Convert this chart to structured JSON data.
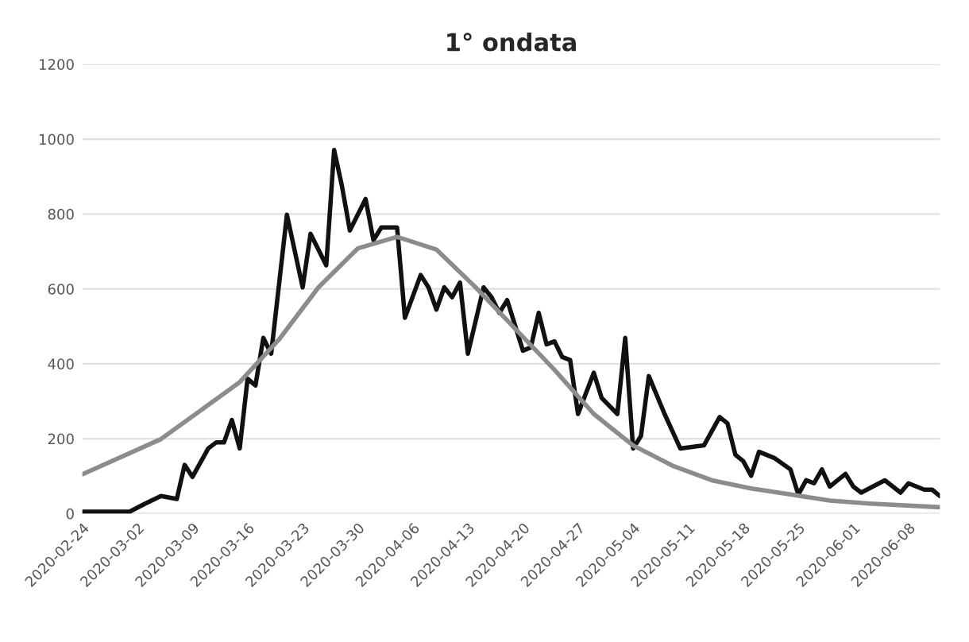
{
  "chart_data": {
    "type": "line",
    "title": "1° ondata",
    "series": [
      {
        "color": "#111111",
        "x": [
          "2020-02-24",
          "2020-03-01",
          "2020-03-03",
          "2020-03-05",
          "2020-03-07",
          "2020-03-08",
          "2020-03-09",
          "2020-03-11",
          "2020-03-12",
          "2020-03-13",
          "2020-03-14",
          "2020-03-15",
          "2020-03-16",
          "2020-03-17",
          "2020-03-18",
          "2020-03-19",
          "2020-03-21",
          "2020-03-23",
          "2020-03-24",
          "2020-03-26",
          "2020-03-27",
          "2020-03-28",
          "2020-03-29",
          "2020-03-31",
          "2020-04-01",
          "2020-04-02",
          "2020-04-04",
          "2020-04-05",
          "2020-04-07",
          "2020-04-08",
          "2020-04-09",
          "2020-04-10",
          "2020-04-11",
          "2020-04-12",
          "2020-04-13",
          "2020-04-15",
          "2020-04-16",
          "2020-04-17",
          "2020-04-18",
          "2020-04-20",
          "2020-04-21",
          "2020-04-22",
          "2020-04-23",
          "2020-04-24",
          "2020-04-25",
          "2020-04-26",
          "2020-04-27",
          "2020-04-29",
          "2020-04-30",
          "2020-05-02",
          "2020-05-03",
          "2020-05-04",
          "2020-05-05",
          "2020-05-06",
          "2020-05-08",
          "2020-05-10",
          "2020-05-13",
          "2020-05-15",
          "2020-05-16",
          "2020-05-17",
          "2020-05-18",
          "2020-05-19",
          "2020-05-20",
          "2020-05-22",
          "2020-05-24",
          "2020-05-25",
          "2020-05-26",
          "2020-05-27",
          "2020-05-28",
          "2020-05-29",
          "2020-05-31",
          "2020-06-01",
          "2020-06-02",
          "2020-06-03",
          "2020-06-05",
          "2020-06-07",
          "2020-06-08",
          "2020-06-10",
          "2020-06-11",
          "2020-06-12"
        ],
        "values": [
          5,
          5,
          27,
          47,
          39,
          130,
          98,
          174,
          190,
          190,
          250,
          174,
          360,
          342,
          469,
          427,
          798,
          604,
          747,
          663,
          971,
          874,
          756,
          840,
          730,
          764,
          764,
          523,
          637,
          604,
          545,
          604,
          578,
          617,
          427,
          604,
          578,
          536,
          570,
          435,
          444,
          536,
          452,
          460,
          418,
          410,
          266,
          376,
          309,
          266,
          469,
          174,
          207,
          367,
          266,
          174,
          182,
          258,
          241,
          157,
          140,
          101,
          165,
          148,
          118,
          51,
          89,
          81,
          118,
          72,
          106,
          72,
          56,
          67,
          89,
          56,
          81,
          64,
          64,
          47
        ]
      },
      {
        "color": "#8c8c8c",
        "x": [
          "2020-02-24",
          "2020-03-05",
          "2020-03-15",
          "2020-03-20",
          "2020-03-25",
          "2020-03-30",
          "2020-04-04",
          "2020-04-09",
          "2020-04-14",
          "2020-04-19",
          "2020-04-24",
          "2020-04-29",
          "2020-05-04",
          "2020-05-09",
          "2020-05-14",
          "2020-05-19",
          "2020-05-24",
          "2020-05-29",
          "2020-06-03",
          "2020-06-12"
        ],
        "values": [
          105,
          199,
          351,
          465,
          604,
          708,
          739,
          705,
          604,
          494,
          384,
          266,
          182,
          128,
          89,
          67,
          51,
          35,
          27,
          17
        ]
      }
    ],
    "xlim": [
      "2020-02-24",
      "2020-06-12"
    ],
    "xticks": [
      "2020-02-24",
      "2020-03-02",
      "2020-03-09",
      "2020-03-16",
      "2020-03-23",
      "2020-03-30",
      "2020-04-06",
      "2020-04-13",
      "2020-04-20",
      "2020-04-27",
      "2020-05-04",
      "2020-05-11",
      "2020-05-18",
      "2020-05-25",
      "2020-06-01",
      "2020-06-08"
    ],
    "ylim": [
      0,
      1200
    ],
    "yticks": [
      0,
      200,
      400,
      600,
      800,
      1000,
      1200
    ],
    "grid": "y"
  }
}
